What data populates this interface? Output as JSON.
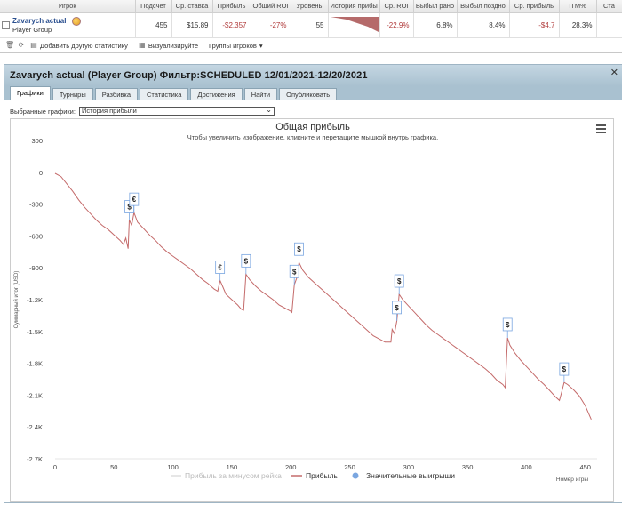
{
  "stats_table": {
    "headers": [
      "Игрок",
      "Подсчет",
      "Ср. ставка",
      "Прибыль",
      "Общий ROI",
      "Уровень",
      "История прибы",
      "Ср. ROI",
      "Выбыл рано",
      "Выбыл поздно",
      "Ср. прибыль",
      "ITM%",
      "Ста"
    ],
    "row": {
      "player_name": "Zavarych actual",
      "player_group": "Player Group",
      "count": "455",
      "avg_stake": "$15.89",
      "profit": "-$2,357",
      "total_roi": "-27%",
      "level": "55",
      "avg_roi": "-22.9%",
      "early_out": "6.8%",
      "late_out": "8.4%",
      "avg_profit": "-$4.7",
      "itm": "28.3%",
      "stake_col": ""
    },
    "colors": {
      "negative": "#b03a3a",
      "sparkline": "#b56a6a"
    }
  },
  "toolbar": {
    "add_stat": "Добавить другую статистику",
    "visualize": "Визуализируйте",
    "player_groups": "Группы игроков"
  },
  "panel": {
    "title": "Zavarych actual (Player Group) Фильтр:SCHEDULED 12/01/2021-12/20/2021",
    "tabs": [
      "Графики",
      "Турниры",
      "Разбивка",
      "Статистика",
      "Достижения",
      "Найти",
      "Опубликовать"
    ],
    "selected_graphs_label": "Выбранные графики:",
    "selected_graph_value": "История прибыли"
  },
  "chart_data": {
    "type": "line",
    "title": "Общая прибыль",
    "subtitle": "Чтобы увеличить изображение, кликните и перетащите мышкой внутрь графика.",
    "ylabel": "Суммарный итог (USD)",
    "xlabel": "Номер игры",
    "ylim": [
      -2700,
      300
    ],
    "xlim": [
      0,
      460
    ],
    "y_ticks": [
      300,
      0,
      -300,
      -600,
      -900,
      -1200,
      -1500,
      -1800,
      -2100,
      -2400,
      -2700
    ],
    "y_tick_labels": [
      "300",
      "0",
      "-300",
      "-600",
      "-900",
      "-1.2K",
      "-1.5K",
      "-1.8K",
      "-2.1K",
      "-2.4K",
      "-2.7K"
    ],
    "x_ticks": [
      0,
      50,
      100,
      150,
      200,
      250,
      300,
      350,
      400,
      450
    ],
    "x_tick_labels": [
      "0",
      "50",
      "100",
      "150",
      "200",
      "250",
      "300",
      "350",
      "400",
      "450"
    ],
    "series": [
      {
        "name": "Прибыль",
        "color": "#c46a6a",
        "points": [
          [
            0,
            -10
          ],
          [
            5,
            -40
          ],
          [
            10,
            -110
          ],
          [
            15,
            -180
          ],
          [
            20,
            -260
          ],
          [
            25,
            -330
          ],
          [
            30,
            -390
          ],
          [
            35,
            -450
          ],
          [
            40,
            -500
          ],
          [
            45,
            -540
          ],
          [
            50,
            -590
          ],
          [
            55,
            -640
          ],
          [
            58,
            -680
          ],
          [
            60,
            -620
          ],
          [
            62,
            -720
          ],
          [
            63,
            -450
          ],
          [
            65,
            -500
          ],
          [
            67,
            -380
          ],
          [
            70,
            -470
          ],
          [
            75,
            -530
          ],
          [
            80,
            -590
          ],
          [
            85,
            -640
          ],
          [
            90,
            -700
          ],
          [
            95,
            -750
          ],
          [
            100,
            -790
          ],
          [
            105,
            -830
          ],
          [
            110,
            -870
          ],
          [
            115,
            -910
          ],
          [
            120,
            -960
          ],
          [
            125,
            -1010
          ],
          [
            130,
            -1050
          ],
          [
            135,
            -1100
          ],
          [
            138,
            -1120
          ],
          [
            140,
            -1020
          ],
          [
            142,
            -1070
          ],
          [
            145,
            -1150
          ],
          [
            150,
            -1200
          ],
          [
            155,
            -1250
          ],
          [
            158,
            -1290
          ],
          [
            160,
            -1300
          ],
          [
            162,
            -960
          ],
          [
            165,
            -1010
          ],
          [
            170,
            -1070
          ],
          [
            175,
            -1120
          ],
          [
            180,
            -1160
          ],
          [
            185,
            -1200
          ],
          [
            190,
            -1250
          ],
          [
            195,
            -1280
          ],
          [
            200,
            -1310
          ],
          [
            201,
            -1320
          ],
          [
            203,
            -1060
          ],
          [
            205,
            -1000
          ],
          [
            207,
            -850
          ],
          [
            210,
            -920
          ],
          [
            215,
            -990
          ],
          [
            220,
            -1040
          ],
          [
            225,
            -1090
          ],
          [
            230,
            -1140
          ],
          [
            235,
            -1190
          ],
          [
            240,
            -1240
          ],
          [
            245,
            -1290
          ],
          [
            250,
            -1340
          ],
          [
            255,
            -1390
          ],
          [
            260,
            -1440
          ],
          [
            265,
            -1490
          ],
          [
            270,
            -1540
          ],
          [
            275,
            -1570
          ],
          [
            280,
            -1600
          ],
          [
            285,
            -1600
          ],
          [
            286,
            -1480
          ],
          [
            288,
            -1520
          ],
          [
            290,
            -1400
          ],
          [
            292,
            -1150
          ],
          [
            295,
            -1200
          ],
          [
            300,
            -1260
          ],
          [
            305,
            -1320
          ],
          [
            310,
            -1380
          ],
          [
            315,
            -1440
          ],
          [
            320,
            -1490
          ],
          [
            325,
            -1530
          ],
          [
            330,
            -1570
          ],
          [
            335,
            -1610
          ],
          [
            340,
            -1650
          ],
          [
            345,
            -1690
          ],
          [
            350,
            -1730
          ],
          [
            355,
            -1770
          ],
          [
            360,
            -1810
          ],
          [
            365,
            -1850
          ],
          [
            370,
            -1900
          ],
          [
            375,
            -1960
          ],
          [
            380,
            -2000
          ],
          [
            382,
            -2030
          ],
          [
            384,
            -1560
          ],
          [
            386,
            -1630
          ],
          [
            390,
            -1700
          ],
          [
            395,
            -1770
          ],
          [
            400,
            -1830
          ],
          [
            405,
            -1890
          ],
          [
            410,
            -1950
          ],
          [
            415,
            -2000
          ],
          [
            420,
            -2060
          ],
          [
            425,
            -2120
          ],
          [
            428,
            -2150
          ],
          [
            430,
            -2070
          ],
          [
            432,
            -1980
          ],
          [
            435,
            -2000
          ],
          [
            440,
            -2050
          ],
          [
            445,
            -2110
          ],
          [
            450,
            -2200
          ],
          [
            455,
            -2330
          ]
        ]
      },
      {
        "name": "Прибыль за минусом рейка",
        "color": "#dddddd",
        "points": []
      }
    ],
    "big_wins": [
      {
        "x": 63,
        "y": -450,
        "symbol": "$"
      },
      {
        "x": 67,
        "y": -380,
        "symbol": "€"
      },
      {
        "x": 140,
        "y": -1020,
        "symbol": "€"
      },
      {
        "x": 162,
        "y": -960,
        "symbol": "$"
      },
      {
        "x": 203,
        "y": -1060,
        "symbol": "$"
      },
      {
        "x": 207,
        "y": -850,
        "symbol": "$"
      },
      {
        "x": 290,
        "y": -1400,
        "symbol": "$"
      },
      {
        "x": 292,
        "y": -1150,
        "symbol": "$"
      },
      {
        "x": 384,
        "y": -1560,
        "symbol": "$"
      },
      {
        "x": 432,
        "y": -1980,
        "symbol": "$"
      }
    ],
    "legend": {
      "placement": "bottom-center",
      "items": [
        {
          "label": "Прибыль за минусом рейка",
          "color": "#dddddd",
          "kind": "line"
        },
        {
          "label": "Прибыль",
          "color": "#c46a6a",
          "kind": "line"
        },
        {
          "label": "Значительные выигрыши",
          "color": "#7aa6e0",
          "kind": "dot"
        }
      ]
    },
    "grid": false
  }
}
